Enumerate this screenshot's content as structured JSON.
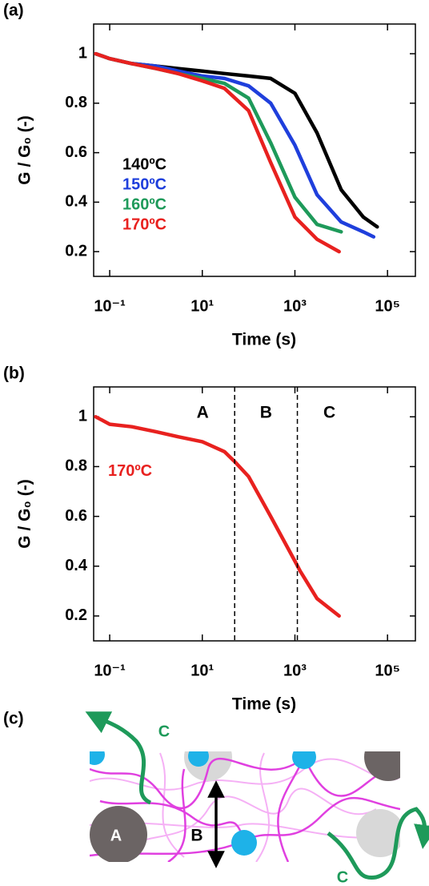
{
  "chart_data": [
    {
      "type": "line",
      "panel_label": "(a)",
      "xlabel": "Time (s)",
      "ylabel": "G / G₀ (-)",
      "xscale": "log",
      "xlim": [
        0.045,
        400000
      ],
      "ylim": [
        0.1,
        1.12
      ],
      "xticks": [
        {
          "value": 0.1,
          "label": "10⁻¹"
        },
        {
          "value": 10,
          "label": "10¹"
        },
        {
          "value": 1000,
          "label": "10³"
        },
        {
          "value": 100000,
          "label": "10⁵"
        }
      ],
      "yticks": [
        0.2,
        0.4,
        0.6,
        0.8,
        1
      ],
      "series": [
        {
          "name": "140ºC",
          "color": "#000000",
          "x": [
            0.05,
            0.1,
            0.3,
            1,
            3,
            10,
            30,
            100,
            300,
            1000,
            3000,
            10000,
            30000,
            60000
          ],
          "values": [
            1.0,
            0.98,
            0.96,
            0.95,
            0.94,
            0.93,
            0.92,
            0.91,
            0.9,
            0.84,
            0.68,
            0.45,
            0.34,
            0.3
          ]
        },
        {
          "name": "150ºC",
          "color": "#1f3fdc",
          "x": [
            0.05,
            0.1,
            0.3,
            1,
            3,
            10,
            30,
            100,
            300,
            1000,
            3000,
            10000,
            30000,
            50000
          ],
          "values": [
            1.0,
            0.98,
            0.96,
            0.95,
            0.93,
            0.91,
            0.9,
            0.87,
            0.8,
            0.63,
            0.43,
            0.32,
            0.28,
            0.26
          ]
        },
        {
          "name": "160ºC",
          "color": "#1e9a5a",
          "x": [
            0.05,
            0.1,
            0.3,
            1,
            3,
            10,
            30,
            100,
            300,
            1000,
            3000,
            10000
          ],
          "values": [
            1.0,
            0.98,
            0.96,
            0.94,
            0.92,
            0.9,
            0.88,
            0.82,
            0.64,
            0.42,
            0.31,
            0.28
          ]
        },
        {
          "name": "170ºC",
          "color": "#e8211f",
          "x": [
            0.05,
            0.1,
            0.3,
            1,
            3,
            10,
            30,
            100,
            300,
            1000,
            3000,
            9000
          ],
          "values": [
            1.0,
            0.98,
            0.96,
            0.94,
            0.92,
            0.89,
            0.86,
            0.77,
            0.56,
            0.34,
            0.25,
            0.2
          ]
        }
      ]
    },
    {
      "type": "line",
      "panel_label": "(b)",
      "xlabel": "Time (s)",
      "ylabel": "G / G₀ (-)",
      "xscale": "log",
      "xlim": [
        0.045,
        400000
      ],
      "ylim": [
        0.1,
        1.12
      ],
      "xticks": [
        {
          "value": 0.1,
          "label": "10⁻¹"
        },
        {
          "value": 10,
          "label": "10¹"
        },
        {
          "value": 1000,
          "label": "10³"
        },
        {
          "value": 100000,
          "label": "10⁵"
        }
      ],
      "yticks": [
        0.2,
        0.4,
        0.6,
        0.8,
        1
      ],
      "vlines": [
        50,
        1130
      ],
      "region_labels": [
        "A",
        "B",
        "C"
      ],
      "annotation": "170ºC",
      "series": [
        {
          "color": "#e8211f",
          "x": [
            0.05,
            0.1,
            0.3,
            1,
            3,
            10,
            30,
            50,
            100,
            300,
            1000,
            1300,
            3000,
            9000
          ],
          "values": [
            1.0,
            0.97,
            0.96,
            0.94,
            0.92,
            0.9,
            0.86,
            0.82,
            0.76,
            0.6,
            0.42,
            0.38,
            0.27,
            0.2
          ]
        }
      ]
    }
  ],
  "diagram": {
    "panel_label": "(c)",
    "labels": [
      "C",
      "A",
      "B",
      "C"
    ]
  }
}
